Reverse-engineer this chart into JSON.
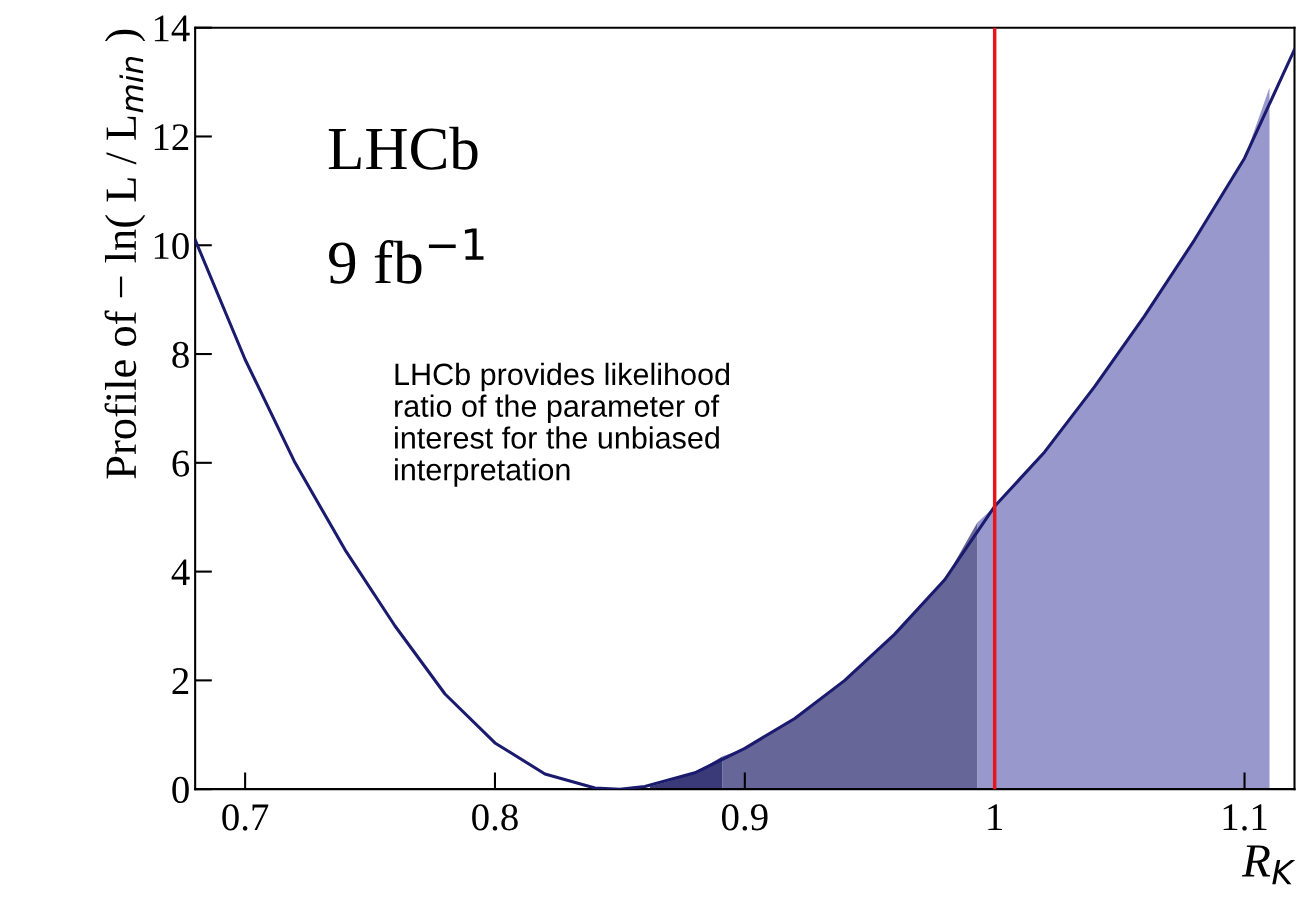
{
  "chart_data": {
    "type": "line",
    "xlabel": "R$_{K}$",
    "ylabel": "Profile of − ln( L / L$_{min}$ )",
    "xlim": [
      0.68,
      1.12
    ],
    "ylim": [
      0,
      14
    ],
    "xticks": [
      0.7,
      0.8,
      0.9,
      {
        "value": 1.0,
        "label": "1"
      },
      1.1
    ],
    "yticks": [
      0,
      2,
      4,
      6,
      8,
      10,
      12,
      14
    ],
    "grid": false,
    "marker": "none",
    "line_style": "solid",
    "series": [
      {
        "type": "area",
        "color": "#9898cc",
        "x": [
          0.993,
          1.0,
          1.02,
          1.04,
          1.06,
          1.08,
          1.1,
          1.11
        ],
        "values": [
          4.9,
          5.2,
          6.2,
          7.4,
          8.7,
          10.1,
          11.6,
          12.9
        ]
      },
      {
        "type": "area",
        "color": "#676699",
        "x": [
          0.891,
          0.9,
          0.92,
          0.94,
          0.96,
          0.98,
          0.993
        ],
        "values": [
          0.6,
          0.75,
          1.3,
          2.0,
          2.85,
          3.85,
          4.9
        ]
      },
      {
        "type": "area",
        "color": "#3a3a78",
        "x": [
          0.862,
          0.87,
          0.88,
          0.891
        ],
        "values": [
          0.05,
          0.15,
          0.3,
          0.6
        ]
      },
      {
        "type": "line",
        "color": "#1a1a6e",
        "x": [
          0.68,
          0.7,
          0.72,
          0.74,
          0.76,
          0.78,
          0.8,
          0.82,
          0.84,
          0.85,
          0.86,
          0.88,
          0.9,
          0.92,
          0.94,
          0.96,
          0.98,
          1.0,
          1.02,
          1.04,
          1.06,
          1.08,
          1.1,
          1.12
        ],
        "values": [
          10.1,
          7.9,
          6.0,
          4.4,
          3.0,
          1.75,
          0.85,
          0.28,
          0.02,
          0.0,
          0.05,
          0.3,
          0.75,
          1.3,
          2.0,
          2.85,
          3.85,
          5.2,
          6.2,
          7.4,
          8.7,
          10.1,
          11.6,
          13.6
        ]
      }
    ],
    "ref_lines": [
      {
        "axis": "x",
        "value": 1.0,
        "color": "#e8141b"
      }
    ],
    "annotations": [
      "LHCb",
      "9 fb$^{−1}$",
      "LHCb provides likelihood\nratio of the parameter of\ninterest for the unbiased\ninterpretation"
    ]
  }
}
